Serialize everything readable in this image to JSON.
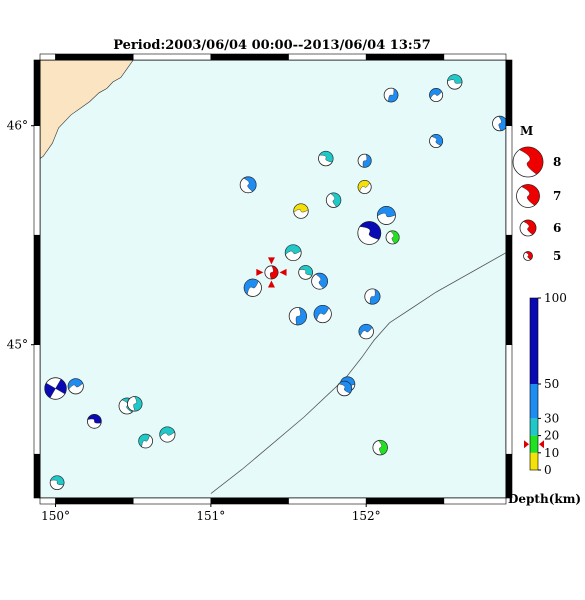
{
  "map": {
    "title": "Period:2003/06/04 00:00--2013/06/04 13:57",
    "lon_range": [
      149.9,
      152.9
    ],
    "lat_range": [
      44.3,
      46.3
    ],
    "lon_ticks": [
      {
        "v": 150,
        "label": "150°"
      },
      {
        "v": 151,
        "label": "151°"
      },
      {
        "v": 152,
        "label": "152°"
      }
    ],
    "lat_ticks": [
      {
        "v": 45,
        "label": "45°"
      },
      {
        "v": 46,
        "label": "46°"
      }
    ],
    "colors": {
      "ocean": "#e6fafa",
      "land": "#fae4c2",
      "trench": "#555555"
    }
  },
  "events": [
    {
      "lon": 150.0,
      "lat": 44.8,
      "mag": 6.8,
      "depth": 70,
      "main": false
    },
    {
      "lon": 150.13,
      "lat": 44.81,
      "mag": 5.9,
      "depth": 35,
      "main": false
    },
    {
      "lon": 150.25,
      "lat": 44.65,
      "mag": 5.7,
      "depth": 70,
      "main": false
    },
    {
      "lon": 150.46,
      "lat": 44.72,
      "mag": 6.0,
      "depth": 25,
      "main": false
    },
    {
      "lon": 150.51,
      "lat": 44.73,
      "mag": 5.8,
      "depth": 25,
      "main": false
    },
    {
      "lon": 150.58,
      "lat": 44.56,
      "mag": 5.7,
      "depth": 25,
      "main": false
    },
    {
      "lon": 150.72,
      "lat": 44.59,
      "mag": 5.9,
      "depth": 25,
      "main": false
    },
    {
      "lon": 150.01,
      "lat": 44.37,
      "mag": 5.7,
      "depth": 25,
      "main": false
    },
    {
      "lon": 151.24,
      "lat": 45.73,
      "mag": 6.0,
      "depth": 35,
      "main": false
    },
    {
      "lon": 151.39,
      "lat": 45.33,
      "mag": 5.6,
      "depth": 15,
      "main": true
    },
    {
      "lon": 151.27,
      "lat": 45.26,
      "mag": 6.2,
      "depth": 35,
      "main": false
    },
    {
      "lon": 151.53,
      "lat": 45.42,
      "mag": 6.0,
      "depth": 25,
      "main": false
    },
    {
      "lon": 151.61,
      "lat": 45.33,
      "mag": 5.7,
      "depth": 25,
      "main": false
    },
    {
      "lon": 151.7,
      "lat": 45.29,
      "mag": 6.0,
      "depth": 35,
      "main": false
    },
    {
      "lon": 151.56,
      "lat": 45.13,
      "mag": 6.2,
      "depth": 35,
      "main": false
    },
    {
      "lon": 151.72,
      "lat": 45.14,
      "mag": 6.2,
      "depth": 35,
      "main": false
    },
    {
      "lon": 151.58,
      "lat": 45.61,
      "mag": 5.8,
      "depth": 5,
      "main": false
    },
    {
      "lon": 151.74,
      "lat": 45.85,
      "mag": 5.8,
      "depth": 25,
      "main": false
    },
    {
      "lon": 151.79,
      "lat": 45.66,
      "mag": 5.8,
      "depth": 25,
      "main": false
    },
    {
      "lon": 151.99,
      "lat": 45.84,
      "mag": 5.6,
      "depth": 35,
      "main": false
    },
    {
      "lon": 151.99,
      "lat": 45.72,
      "mag": 5.6,
      "depth": 5,
      "main": false
    },
    {
      "lon": 152.13,
      "lat": 45.59,
      "mag": 6.3,
      "depth": 35,
      "main": false
    },
    {
      "lon": 152.02,
      "lat": 45.51,
      "mag": 7.0,
      "depth": 70,
      "main": false
    },
    {
      "lon": 152.17,
      "lat": 45.49,
      "mag": 5.6,
      "depth": 12,
      "main": false
    },
    {
      "lon": 152.04,
      "lat": 45.22,
      "mag": 5.9,
      "depth": 35,
      "main": false
    },
    {
      "lon": 152.0,
      "lat": 45.06,
      "mag": 5.8,
      "depth": 35,
      "main": false
    },
    {
      "lon": 151.88,
      "lat": 44.82,
      "mag": 5.8,
      "depth": 35,
      "main": false
    },
    {
      "lon": 151.86,
      "lat": 44.8,
      "mag": 5.8,
      "depth": 35,
      "main": false
    },
    {
      "lon": 152.09,
      "lat": 44.53,
      "mag": 5.8,
      "depth": 12,
      "main": false
    },
    {
      "lon": 152.16,
      "lat": 46.14,
      "mag": 5.7,
      "depth": 35,
      "main": false
    },
    {
      "lon": 152.45,
      "lat": 46.14,
      "mag": 5.6,
      "depth": 35,
      "main": false
    },
    {
      "lon": 152.57,
      "lat": 46.2,
      "mag": 5.8,
      "depth": 25,
      "main": false
    },
    {
      "lon": 152.45,
      "lat": 45.93,
      "mag": 5.6,
      "depth": 35,
      "main": false
    },
    {
      "lon": 152.86,
      "lat": 46.01,
      "mag": 5.8,
      "depth": 35,
      "main": false
    }
  ],
  "legend": {
    "mag_title": "M",
    "mags": [
      {
        "m": 8,
        "label": "8"
      },
      {
        "m": 7,
        "label": "7"
      },
      {
        "m": 6,
        "label": "6"
      },
      {
        "m": 5,
        "label": "5"
      }
    ],
    "depth_title": "Depth(km)",
    "depth_ticks": [
      {
        "v": 100,
        "label": "100"
      },
      {
        "v": 50,
        "label": "50"
      },
      {
        "v": 30,
        "label": "30"
      },
      {
        "v": 20,
        "label": "20"
      },
      {
        "v": 10,
        "label": "10"
      },
      {
        "v": 0,
        "label": "0"
      }
    ],
    "depth_bands": [
      {
        "from": 0,
        "to": 10,
        "color": "#f5e10a"
      },
      {
        "from": 10,
        "to": 20,
        "color": "#22e022"
      },
      {
        "from": 20,
        "to": 30,
        "color": "#20c8c8"
      },
      {
        "from": 30,
        "to": 50,
        "color": "#1e8cf0"
      },
      {
        "from": 50,
        "to": 100,
        "color": "#0a0ab4"
      }
    ],
    "main_event_depth": 15
  }
}
